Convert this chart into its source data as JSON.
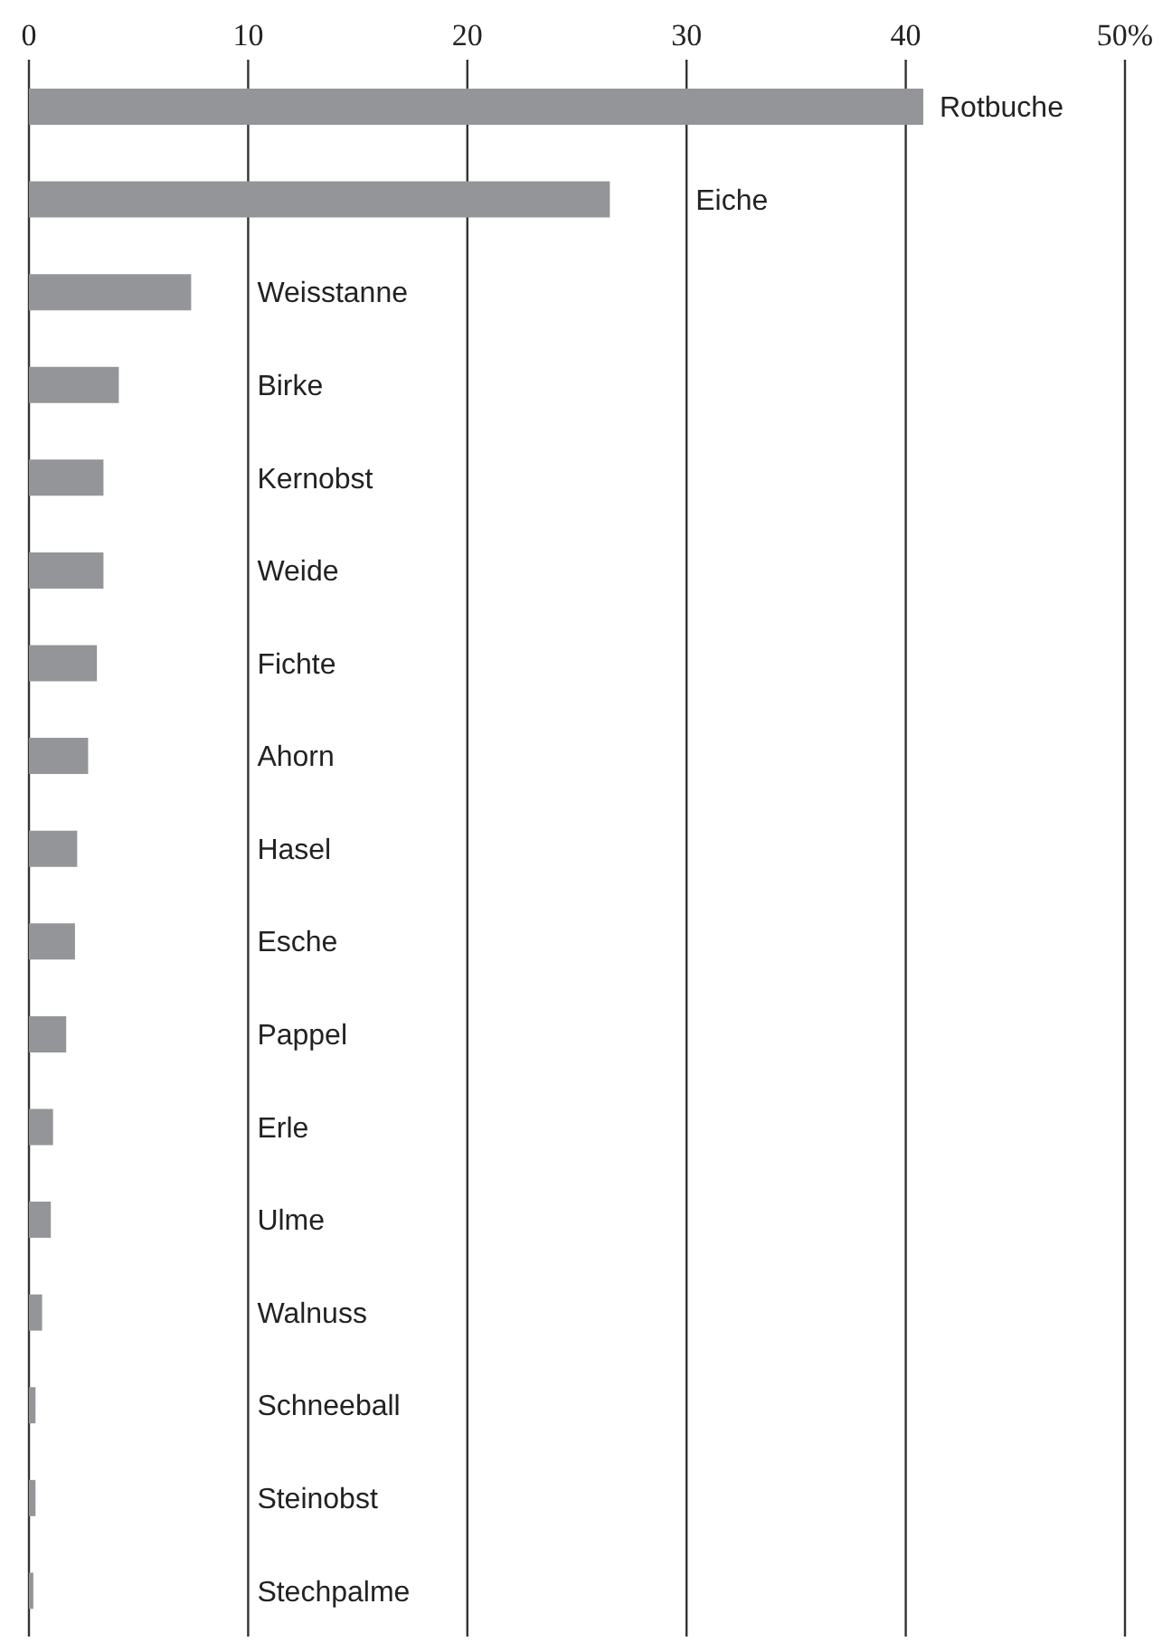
{
  "chart_data": {
    "type": "bar",
    "orientation": "horizontal",
    "categories": [
      "Rotbuche",
      "Eiche",
      "Weisstanne",
      "Birke",
      "Kernobst",
      "Weide",
      "Fichte",
      "Ahorn",
      "Hasel",
      "Esche",
      "Pappel",
      "Erle",
      "Ulme",
      "Walnuss",
      "Schneeball",
      "Steinobst",
      "Stechpalme"
    ],
    "values": [
      40.8,
      26.5,
      7.4,
      4.1,
      3.4,
      3.4,
      3.1,
      2.7,
      2.2,
      2.1,
      1.7,
      1.1,
      1.0,
      0.6,
      0.3,
      0.3,
      0.2
    ],
    "color": "#939598",
    "xlim": [
      0,
      50
    ],
    "xticks": [
      0,
      10,
      20,
      30,
      40,
      {
        "value": 50,
        "label": "50%"
      }
    ],
    "grid": "x"
  }
}
